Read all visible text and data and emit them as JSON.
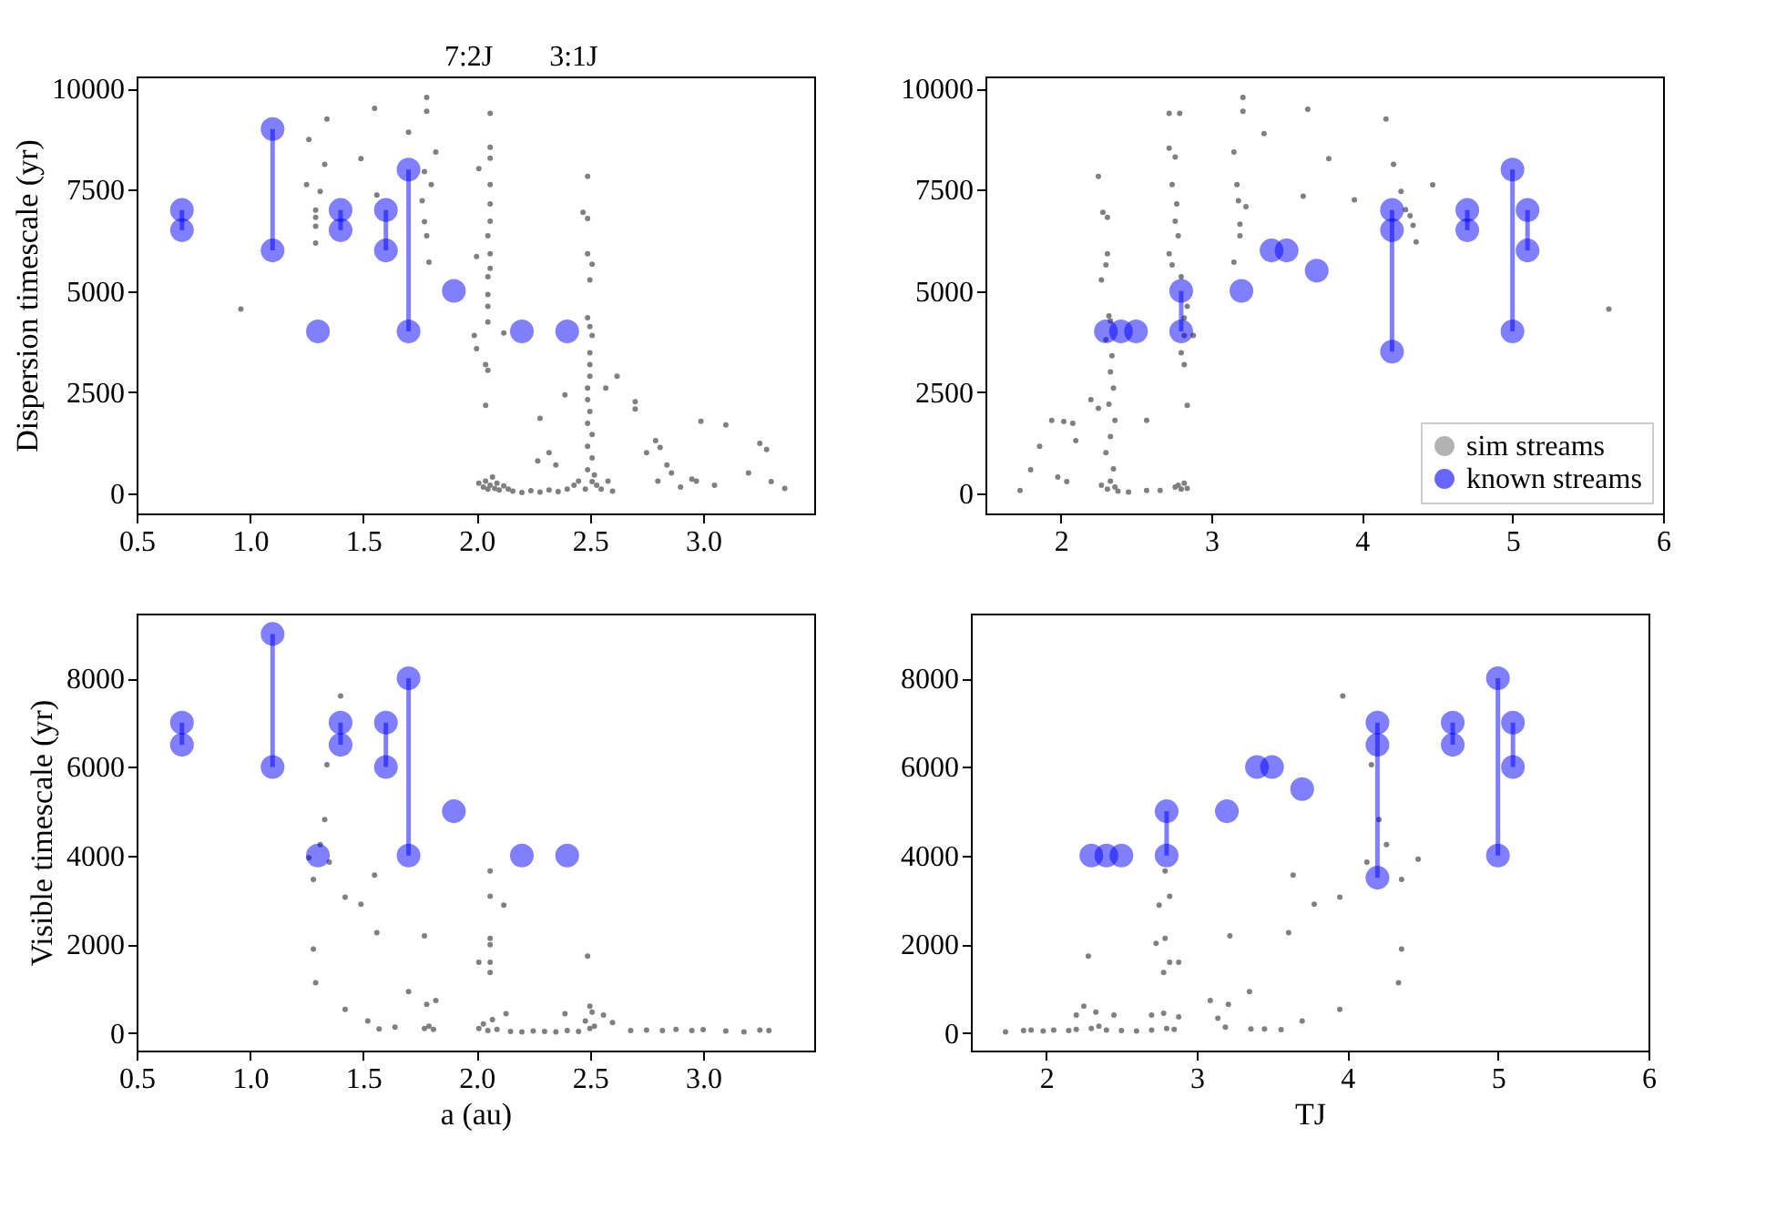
{
  "chart_data": [
    {
      "type": "scatter",
      "ylabel": "Dispersion timescale (yr)",
      "xlim": [
        0.5,
        3.49
      ],
      "ylim": [
        -500,
        10300
      ],
      "xticks": [
        0.5,
        {
          "value": 1,
          "label": "1.0"
        },
        1.5,
        {
          "value": 2,
          "label": "2.0"
        },
        2.5,
        {
          "value": 3,
          "label": "3.0"
        }
      ],
      "yticks": [
        0,
        2500,
        5000,
        7500,
        10000
      ],
      "annotations": [
        "7:2J",
        "3:1J"
      ],
      "series": [
        {
          "color": "#808080",
          "marker": "circle",
          "x": [
            0.96,
            1.26,
            1.34,
            1.33,
            1.25,
            1.31,
            1.29,
            1.29,
            1.29,
            1.29,
            1.55,
            1.49,
            1.56,
            1.78,
            1.78,
            1.7,
            1.82,
            1.77,
            1.8,
            1.76,
            1.77,
            1.78,
            1.79,
            2.06,
            2.06,
            2.06,
            2.01,
            2.06,
            2.06,
            2.06,
            2.05,
            2.06,
            2.0,
            2.06,
            2.05,
            2.05,
            2.05,
            2.05,
            1.99,
            2.0,
            2.04,
            2.05,
            2.04,
            2.12,
            2.01,
            2.03,
            2.04,
            2.05,
            2.06,
            2.07,
            2.08,
            2.09,
            2.1,
            2.12,
            2.14,
            2.16,
            2.2,
            2.24,
            2.28,
            2.32,
            2.36,
            2.4,
            2.43,
            2.45,
            2.49,
            2.47,
            2.49,
            2.49,
            2.51,
            2.5,
            2.49,
            2.5,
            2.51,
            2.5,
            2.5,
            2.5,
            2.49,
            2.49,
            2.5,
            2.49,
            2.51,
            2.49,
            2.51,
            2.49,
            2.51,
            2.48,
            2.52,
            2.53,
            2.55,
            2.58,
            2.6,
            2.62,
            2.57,
            2.39,
            2.28,
            2.32,
            2.35,
            2.27,
            2.7,
            2.7,
            2.75,
            2.79,
            2.81,
            2.84,
            2.86,
            2.8,
            2.99,
            3.1,
            2.95,
            2.97,
            3.25,
            3.28,
            3.2,
            3.3,
            3.36,
            3.05,
            2.9
          ],
          "values": [
            4550,
            8740,
            9250,
            8130,
            7630,
            7460,
            7000,
            6820,
            6600,
            6180,
            9510,
            8270,
            7370,
            9780,
            9440,
            8920,
            8430,
            7950,
            7630,
            7230,
            6710,
            6360,
            5710,
            9390,
            8550,
            8280,
            8020,
            7630,
            7150,
            6720,
            6360,
            5920,
            5850,
            5560,
            5350,
            4910,
            4620,
            4230,
            3900,
            3570,
            3180,
            3040,
            2170,
            3960,
            250,
            150,
            300,
            100,
            200,
            400,
            120,
            250,
            80,
            180,
            100,
            50,
            20,
            60,
            30,
            80,
            40,
            100,
            200,
            300,
            7830,
            6940,
            6790,
            5920,
            5660,
            5270,
            4340,
            4120,
            3900,
            3470,
            3180,
            2890,
            2600,
            2310,
            2020,
            1730,
            1450,
            1160,
            870,
            580,
            290,
            100,
            450,
            200,
            100,
            300,
            50,
            2890,
            2600,
            2430,
            1850,
            1000,
            700,
            800,
            2260,
            2080,
            1000,
            1300,
            1130,
            700,
            500,
            300,
            1780,
            1690,
            350,
            300,
            1230,
            1080,
            500,
            290,
            120,
            200,
            150
          ]
        },
        {
          "type": "line",
          "color": "#0000ff",
          "marker": "circle",
          "line_style": "solid",
          "x": [
            0.7,
            0.7,
            null,
            1.1,
            1.1,
            null,
            1.3,
            null,
            1.4,
            1.4,
            null,
            1.6,
            1.6,
            null,
            1.7,
            1.7,
            null,
            1.9,
            null,
            2.2,
            null,
            2.4
          ],
          "values": [
            7000,
            6500,
            null,
            9000,
            6000,
            null,
            4000,
            null,
            7000,
            6500,
            null,
            7000,
            6000,
            null,
            8000,
            4000,
            null,
            5000,
            null,
            4000,
            null,
            4000
          ]
        }
      ]
    },
    {
      "type": "scatter",
      "xlim": [
        1.5,
        6
      ],
      "ylim": [
        -500,
        10300
      ],
      "xticks": [
        2,
        3,
        4,
        5,
        6
      ],
      "yticks": [
        0,
        2500,
        5000,
        7500,
        10000
      ],
      "legend": "bottom right",
      "series": [
        {
          "name": "sim streams",
          "color": "#808080",
          "marker": "circle",
          "x": [
            2.25,
            2.28,
            2.31,
            2.31,
            2.3,
            2.27,
            2.32,
            2.33,
            2.3,
            2.34,
            2.33,
            2.35,
            2.32,
            2.36,
            2.33,
            2.3,
            2.35,
            2.33,
            2.31,
            2.36,
            2.38,
            2.27,
            2.2,
            2.25,
            2.08,
            2.1,
            1.94,
            2.02,
            1.86,
            1.8,
            1.73,
            1.98,
            2.04,
            2.57,
            2.72,
            2.79,
            2.72,
            2.76,
            2.74,
            2.77,
            2.76,
            2.78,
            2.72,
            2.74,
            2.8,
            2.84,
            2.82,
            2.82,
            2.8,
            2.82,
            2.84,
            2.88,
            2.76,
            2.78,
            2.8,
            2.82,
            2.84,
            2.66,
            2.57,
            2.45,
            3.15,
            3.17,
            3.18,
            3.21,
            3.21,
            3.23,
            3.19,
            3.19,
            3.15,
            3.35,
            3.64,
            3.78,
            3.61,
            3.95,
            4.16,
            4.21,
            4.26,
            4.32,
            4.34,
            4.36,
            4.29,
            4.47,
            5.64
          ],
          "values": [
            7830,
            6940,
            6820,
            5920,
            5640,
            5270,
            4380,
            4260,
            3800,
            3400,
            3000,
            2600,
            2200,
            1800,
            1400,
            1000,
            600,
            300,
            100,
            150,
            50,
            200,
            2310,
            2100,
            1730,
            1300,
            1800,
            1770,
            1160,
            580,
            70,
            400,
            290,
            1800,
            9390,
            9390,
            8530,
            8310,
            7630,
            7150,
            6720,
            6360,
            5920,
            5640,
            5350,
            4620,
            4330,
            3900,
            3470,
            3180,
            2170,
            3900,
            150,
            200,
            100,
            250,
            120,
            70,
            70,
            30,
            8430,
            7630,
            7230,
            9780,
            9440,
            7080,
            6650,
            6360,
            5710,
            8890,
            9490,
            8270,
            7340,
            7250,
            9250,
            8130,
            7460,
            6860,
            6620,
            6210,
            7010,
            7620,
            4550
          ]
        },
        {
          "type": "line",
          "name": "known streams",
          "color": "#0000ff",
          "marker": "circle",
          "line_style": "solid",
          "x": [
            2.3,
            null,
            2.4,
            null,
            2.5,
            null,
            2.8,
            2.8,
            null,
            3.2,
            null,
            3.4,
            null,
            3.5,
            null,
            3.7,
            null,
            4.2,
            4.2,
            4.2,
            null,
            4.7,
            4.7,
            null,
            5.0,
            5.0,
            null,
            5.1,
            5.1
          ],
          "values": [
            4000,
            null,
            4000,
            null,
            4000,
            null,
            5000,
            4000,
            null,
            5000,
            null,
            6000,
            null,
            6000,
            null,
            5500,
            null,
            7000,
            6500,
            3500,
            null,
            7000,
            6500,
            null,
            8000,
            4000,
            null,
            7000,
            6000
          ]
        }
      ]
    },
    {
      "type": "scatter",
      "xlabel": "a (au)",
      "ylabel": "Visible timescale (yr)",
      "xlim": [
        0.5,
        3.49
      ],
      "ylim": [
        -400,
        9460
      ],
      "xticks": [
        0.5,
        {
          "value": 1,
          "label": "1.0"
        },
        1.5,
        {
          "value": 2,
          "label": "2.0"
        },
        2.5,
        {
          "value": 3,
          "label": "3.0"
        }
      ],
      "yticks": [
        0,
        2000,
        4000,
        6000,
        8000
      ],
      "series": [
        {
          "color": "#808080",
          "marker": "circle",
          "x": [
            1.4,
            1.34,
            1.33,
            1.31,
            1.26,
            1.35,
            1.28,
            1.42,
            1.49,
            1.55,
            1.56,
            1.77,
            1.28,
            1.29,
            1.42,
            1.52,
            1.57,
            1.64,
            1.7,
            1.78,
            1.82,
            1.77,
            1.79,
            1.81,
            2.06,
            2.06,
            2.12,
            2.06,
            2.06,
            2.01,
            2.06,
            2.06,
            2.01,
            2.03,
            2.05,
            2.07,
            2.09,
            2.13,
            2.39,
            2.15,
            2.2,
            2.25,
            2.3,
            2.35,
            2.4,
            2.45,
            2.49,
            2.5,
            2.51,
            2.48,
            2.56,
            2.6,
            2.5,
            2.52,
            2.68,
            2.75,
            2.82,
            2.88,
            2.95,
            3.0,
            3.1,
            3.18,
            3.25,
            3.29
          ],
          "values": [
            7600,
            6050,
            4810,
            4250,
            3950,
            3850,
            3460,
            3060,
            2900,
            3560,
            2260,
            2190,
            1890,
            1130,
            530,
            270,
            90,
            130,
            930,
            640,
            730,
            100,
            150,
            80,
            3650,
            3080,
            2880,
            2130,
            1990,
            1590,
            1590,
            1360,
            100,
            200,
            50,
            300,
            80,
            430,
            430,
            30,
            20,
            40,
            30,
            20,
            50,
            30,
            1730,
            600,
            470,
            270,
            400,
            230,
            100,
            150,
            50,
            60,
            50,
            80,
            50,
            70,
            40,
            20,
            60,
            50
          ]
        },
        {
          "type": "line",
          "color": "#0000ff",
          "marker": "circle",
          "line_style": "solid",
          "x": [
            0.7,
            0.7,
            null,
            1.1,
            1.1,
            null,
            1.3,
            null,
            1.4,
            1.4,
            null,
            1.6,
            1.6,
            null,
            1.7,
            1.7,
            null,
            1.9,
            null,
            2.2,
            null,
            2.4
          ],
          "values": [
            7000,
            6500,
            null,
            9000,
            6000,
            null,
            4000,
            null,
            7000,
            6500,
            null,
            7000,
            6000,
            null,
            8000,
            4000,
            null,
            5000,
            null,
            4000,
            null,
            4000
          ]
        }
      ]
    },
    {
      "type": "scatter",
      "xlabel": "TJ",
      "xlim": [
        1.5,
        6
      ],
      "ylim": [
        -400,
        9460
      ],
      "xticks": [
        2,
        3,
        4,
        5,
        6
      ],
      "yticks": [
        0,
        2000,
        4000,
        6000,
        8000
      ],
      "series": [
        {
          "color": "#808080",
          "marker": "circle",
          "x": [
            3.97,
            4.16,
            4.21,
            4.26,
            4.13,
            4.36,
            4.47,
            3.64,
            3.95,
            3.78,
            3.61,
            3.22,
            4.36,
            4.34,
            3.95,
            3.35,
            3.09,
            3.21,
            3.14,
            3.19,
            3.7,
            3.36,
            3.45,
            3.56,
            2.79,
            2.82,
            2.75,
            2.73,
            2.79,
            2.82,
            2.88,
            2.78,
            2.28,
            2.25,
            2.33,
            2.2,
            2.45,
            2.7,
            2.78,
            2.88,
            1.73,
            1.85,
            1.9,
            1.98,
            2.05,
            2.15,
            2.2,
            2.3,
            2.35,
            2.4,
            2.5,
            2.6,
            2.7,
            2.8,
            2.85
          ],
          "values": [
            7600,
            6050,
            4810,
            4250,
            3850,
            3460,
            3920,
            3560,
            3060,
            2900,
            2260,
            2190,
            1890,
            1130,
            530,
            930,
            730,
            640,
            330,
            130,
            270,
            90,
            90,
            70,
            3650,
            3080,
            2880,
            2020,
            2130,
            1590,
            1590,
            1360,
            1730,
            600,
            470,
            400,
            400,
            400,
            440,
            360,
            20,
            50,
            60,
            40,
            60,
            50,
            80,
            100,
            150,
            60,
            50,
            40,
            60,
            100,
            80
          ]
        },
        {
          "type": "line",
          "color": "#0000ff",
          "marker": "circle",
          "line_style": "solid",
          "x": [
            2.3,
            null,
            2.4,
            null,
            2.5,
            null,
            2.8,
            2.8,
            null,
            3.2,
            null,
            3.4,
            null,
            3.5,
            null,
            3.7,
            null,
            4.2,
            4.2,
            4.2,
            null,
            4.7,
            4.7,
            null,
            5.0,
            5.0,
            null,
            5.1,
            5.1
          ],
          "values": [
            4000,
            null,
            4000,
            null,
            4000,
            null,
            5000,
            4000,
            null,
            5000,
            null,
            6000,
            null,
            6000,
            null,
            5500,
            null,
            7000,
            6500,
            3500,
            null,
            7000,
            6500,
            null,
            8000,
            4000,
            null,
            7000,
            6000
          ]
        }
      ]
    }
  ]
}
